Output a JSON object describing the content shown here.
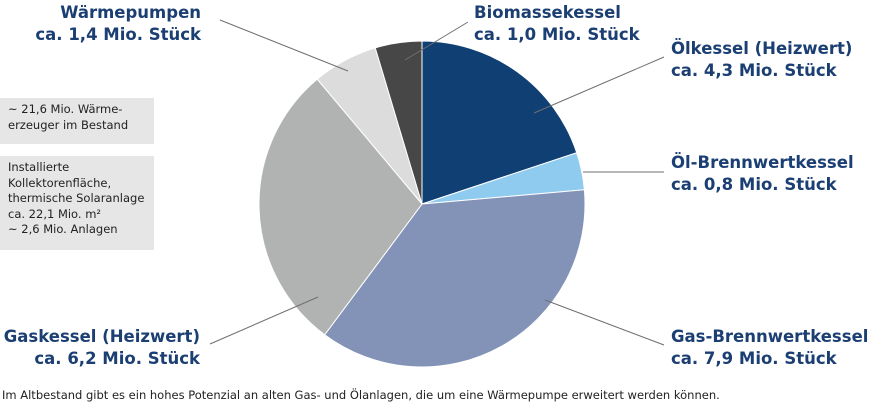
{
  "chart_data": {
    "type": "pie",
    "title": "",
    "start_angle_deg": 0,
    "direction": "clockwise",
    "slices": [
      {
        "line1": "Ölkessel (Heizwert)",
        "line2": "ca. 4,3 Mio. Stück",
        "value": 4.3,
        "color": "#0f3f73",
        "label_id": "label-oelkessel"
      },
      {
        "line1": "Öl-Brennwertkessel",
        "line2": "ca. 0,8 Mio. Stück",
        "value": 0.8,
        "color": "#8ecbef",
        "label_id": "label-oel-brennwert"
      },
      {
        "line1": "Gas-Brennwertkessel",
        "line2": "ca. 7,9 Mio. Stück",
        "value": 7.9,
        "color": "#8393b7",
        "label_id": "label-gas-brennwert"
      },
      {
        "line1": "Gaskessel (Heizwert)",
        "line2": "ca. 6,2 Mio. Stück",
        "value": 6.2,
        "color": "#b0b3b2",
        "label_id": "label-gaskessel"
      },
      {
        "line1": "Wärmepumpen",
        "line2": "ca. 1,4 Mio. Stück",
        "value": 1.4,
        "color": "#dcdcdd",
        "label_id": "label-waermepumpen"
      },
      {
        "line1": "Biomassekessel",
        "line2": "ca. 1,0 Mio. Stück",
        "value": 1.0,
        "color": "#474748",
        "label_id": "label-biomasse"
      }
    ]
  },
  "info_boxes": {
    "stock": {
      "line1": "~ 21,6 Mio. Wärme-",
      "line2": "erzeuger im Bestand"
    },
    "solar": {
      "line1": "Installierte",
      "line2": "Kollektorenfläche,",
      "line3": "thermische Solaranlage",
      "line4": "ca. 22,1 Mio. m²",
      "line5": "~ 2,6 Mio. Anlagen"
    }
  },
  "caption": "Im Altbestand gibt es ein hohes Potenzial an alten Gas- und Ölanlagen, die um eine Wärmepumpe erweitert werden können.",
  "colors": {
    "label_text": "#1b3f73",
    "leader_line": "#6f6f6f",
    "info_box_bg": "#e6e6e6"
  }
}
